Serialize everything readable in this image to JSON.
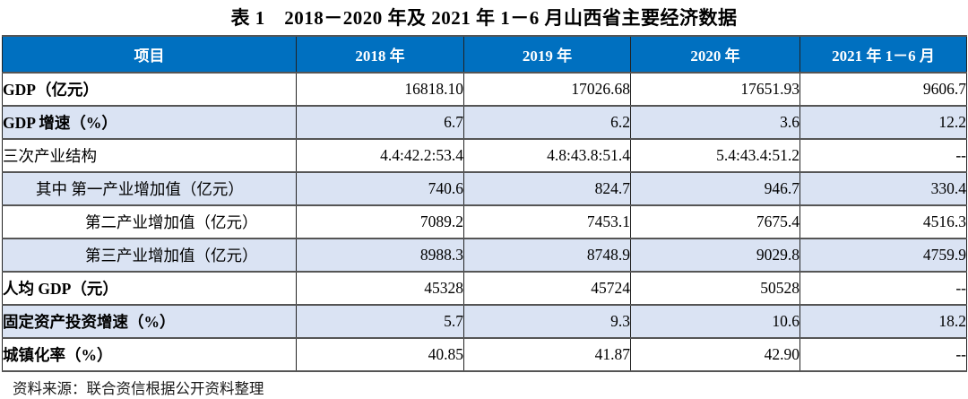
{
  "title": "表 1　2018－2020 年及 2021 年 1－6 月山西省主要经济数据",
  "colors": {
    "header_bg": "#0070C0",
    "header_text": "#ffffff",
    "row_shade": "#DAE3F3",
    "border_dark": "#404040"
  },
  "table": {
    "columns": [
      "项目",
      "2018 年",
      "2019 年",
      "2020 年",
      "2021 年 1－6 月"
    ],
    "rows": [
      {
        "label": "GDP（亿元）",
        "values": [
          "16818.10",
          "17026.68",
          "17651.93",
          "9606.7"
        ]
      },
      {
        "label": "GDP 增速（%）",
        "values": [
          "6.7",
          "6.2",
          "3.6",
          "12.2"
        ]
      },
      {
        "label": "三次产业结构",
        "values": [
          "4.4:42.2:53.4",
          "4.8:43.8:51.4",
          "5.4:43.4:51.2",
          "--"
        ]
      },
      {
        "label": "其中 第一产业增加值（亿元）",
        "values": [
          "740.6",
          "824.7",
          "946.7",
          "330.4"
        ]
      },
      {
        "label": "第二产业增加值（亿元）",
        "values": [
          "7089.2",
          "7453.1",
          "7675.4",
          "4516.3"
        ]
      },
      {
        "label": "第三产业增加值（亿元）",
        "values": [
          "8988.3",
          "8748.9",
          "9029.8",
          "4759.9"
        ]
      },
      {
        "label": "人均 GDP（元）",
        "values": [
          "45328",
          "45724",
          "50528",
          "--"
        ]
      },
      {
        "label": "固定资产投资增速（%）",
        "values": [
          "5.7",
          "9.3",
          "10.6",
          "18.2"
        ]
      },
      {
        "label": "城镇化率（%）",
        "values": [
          "40.85",
          "41.87",
          "42.90",
          "--"
        ]
      }
    ]
  },
  "footer": {
    "source": "资料来源：联合资信根据公开资料整理"
  }
}
